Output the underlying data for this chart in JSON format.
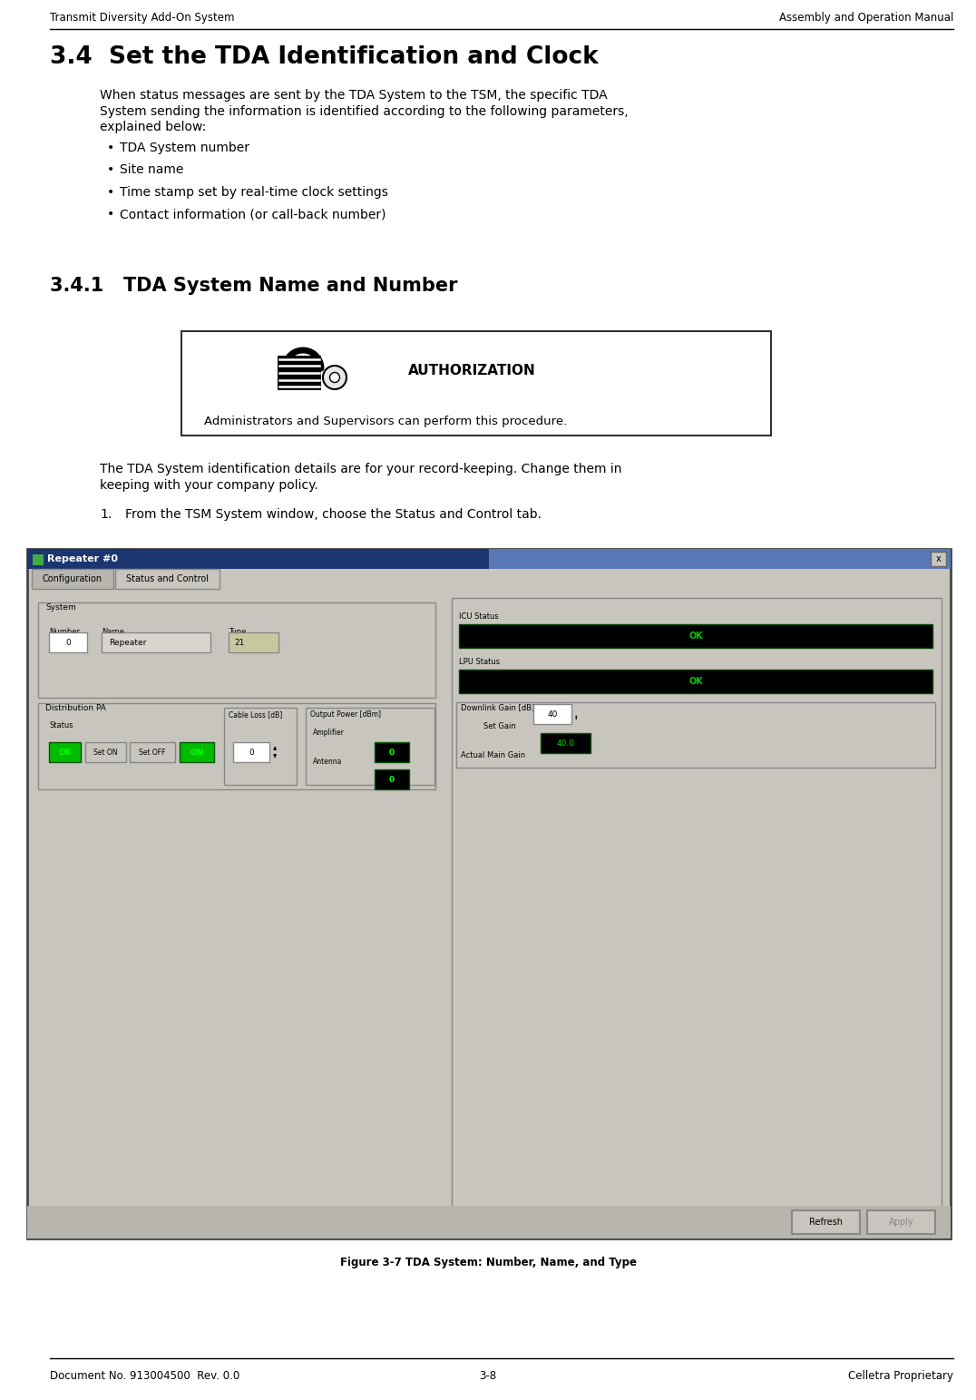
{
  "page_width": 10.76,
  "page_height": 15.43,
  "bg_color": "#ffffff",
  "header_left": "Transmit Diversity Add-On System",
  "header_right": "Assembly and Operation Manual",
  "footer_left": "Document No. 913004500  Rev. 0.0",
  "footer_center": "3-8",
  "footer_right": "Celletra Proprietary",
  "section_title": "3.4  Set the TDA Identification and Clock",
  "intro_line1": "When status messages are sent by the TDA System to the TSM, the specific TDA",
  "intro_line2": "System sending the information is identified according to the following parameters,",
  "intro_line3": "explained below:",
  "bullet_points": [
    "TDA System number",
    "Site name",
    "Time stamp set by real-time clock settings",
    "Contact information (or call-back number)"
  ],
  "subsection_title": "3.4.1   TDA System Name and Number",
  "auth_title": "AUTHORIZATION",
  "auth_body": "Administrators and Supervisors can perform this procedure.",
  "body_line1": "The TDA System identification details are for your record-keeping. Change them in",
  "body_line2": "keeping with your company policy.",
  "step1_num": "1.",
  "step1_text": "From the TSM System window, choose the Status and Control tab.",
  "figure_caption": "Figure 3-7 TDA System: Number, Name, and Type",
  "win_title": "Repeater #0",
  "tab1": "Configuration",
  "tab2": "Status and Control",
  "lbl_system": "System",
  "lbl_number": "Number",
  "lbl_name": "Name",
  "lbl_type": "Type",
  "val_number": "0",
  "val_name": "Repeater",
  "val_type": "21",
  "lbl_dist_pa": "Distribution PA",
  "lbl_status": "Status",
  "btn_ok_text": "OK",
  "btn_seton": "Set ON",
  "btn_setoff": "Set OFF",
  "btn_on": "ON",
  "lbl_cable": "Cable Loss [dB]",
  "val_cable": "0",
  "lbl_output": "Output Power [dBm]",
  "lbl_amplifier": "Amplifier",
  "lbl_antenna": "Antenna",
  "val_amp": "0",
  "val_ant": "0",
  "lbl_icu": "ICU Status",
  "lbl_lpu": "LPU Status",
  "lbl_dl_gain": "Downlink Gain [dB]",
  "lbl_set_gain": "Set Gain",
  "val_set_gain": "40",
  "lbl_actual": "Actual Main Gain",
  "val_actual": "40.0",
  "btn_refresh": "Refresh",
  "btn_apply": "Apply",
  "header_fontsize": 8.5,
  "section_title_fontsize": 19,
  "subsection_title_fontsize": 15,
  "body_fontsize": 10,
  "footer_fontsize": 8.5,
  "auth_title_fontsize": 11,
  "auth_body_fontsize": 9.5,
  "figure_caption_fontsize": 8.5,
  "win_title_color": "#1a3a7a",
  "win_title_grad_end": "#6080c0",
  "tab_bg": "#c8c5be",
  "content_bg": "#c8c5be",
  "green_btn_face": "#00cc00",
  "green_btn_text": "#00ff00",
  "black_btn_face": "#000000",
  "black_ok_text": "#00cc00"
}
